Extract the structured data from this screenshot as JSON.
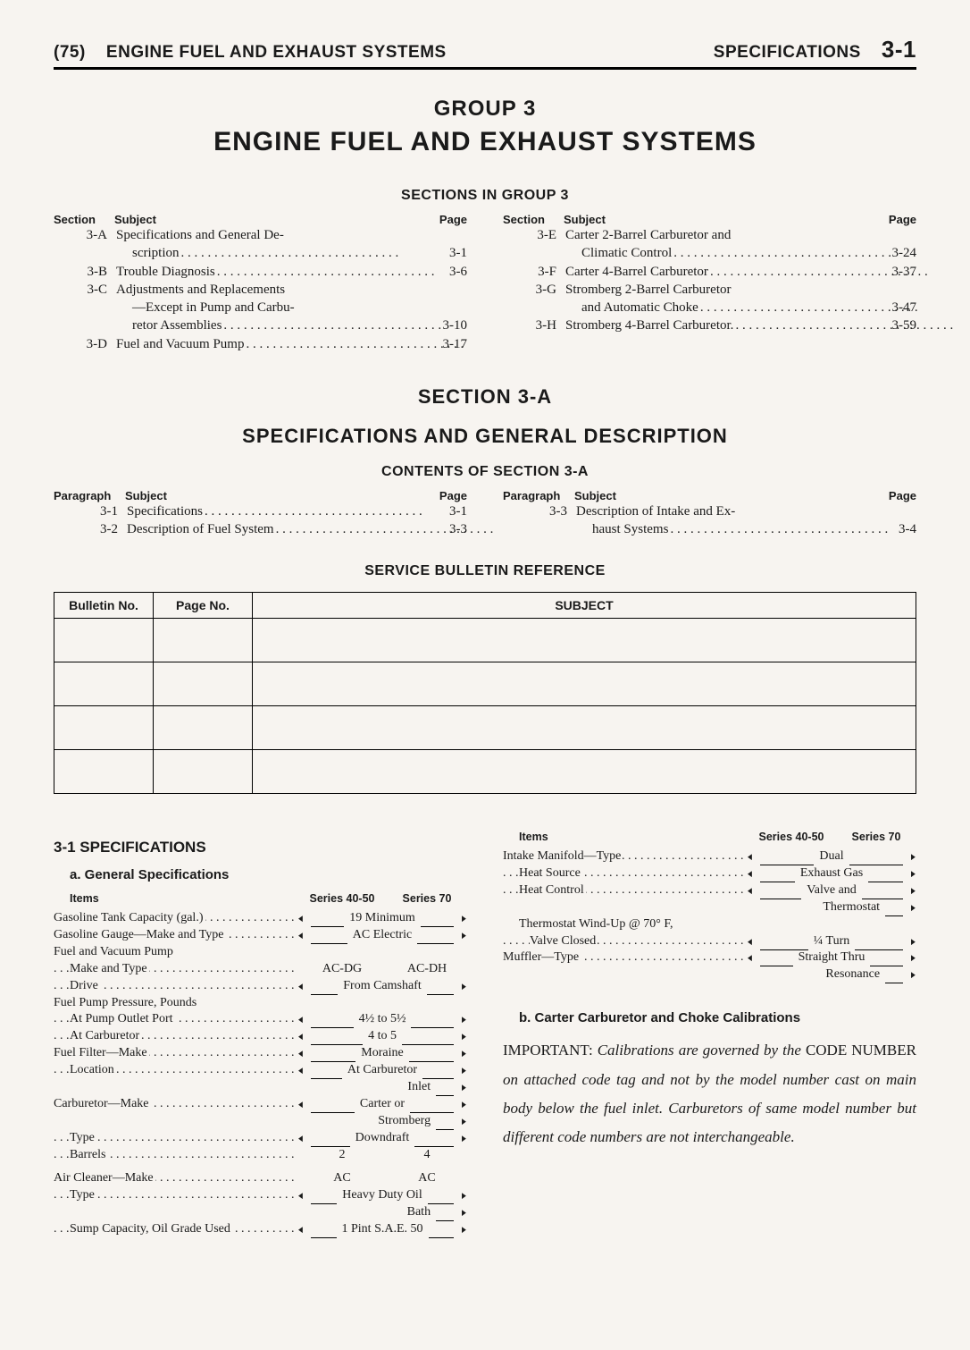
{
  "header": {
    "left_paren": "(75)",
    "left_title": "ENGINE FUEL AND EXHAUST SYSTEMS",
    "right_title": "SPECIFICATIONS",
    "page_num": "3-1"
  },
  "titles": {
    "group": "GROUP 3",
    "main": "ENGINE FUEL AND EXHAUST SYSTEMS",
    "sections_in": "SECTIONS IN GROUP 3",
    "section_a": "SECTION 3-A",
    "spec_desc": "SPECIFICATIONS AND GENERAL DESCRIPTION",
    "contents_a": "CONTENTS OF SECTION 3-A",
    "bulletin": "SERVICE BULLETIN REFERENCE"
  },
  "toc_headers": {
    "section": "Section",
    "subject": "Subject",
    "page": "Page",
    "paragraph": "Paragraph"
  },
  "sections_left": [
    {
      "id": "3-A",
      "subject": "Specifications and General Description",
      "page": "3-1",
      "multi": true,
      "line1": "Specifications and General De-",
      "line2": "scription"
    },
    {
      "id": "3-B",
      "subject": "Trouble Diagnosis",
      "page": "3-6"
    },
    {
      "id": "3-C",
      "subject": "Adjustments and Replacements —Except in Pump and Carburetor Assemblies",
      "page": "3-10",
      "multi": true,
      "line1": "Adjustments and Replacements",
      "line2": "—Except in Pump and Carbu-",
      "line3": "retor Assemblies"
    },
    {
      "id": "3-D",
      "subject": "Fuel and Vacuum Pump",
      "page": "3-17"
    }
  ],
  "sections_right": [
    {
      "id": "3-E",
      "subject": "Carter 2-Barrel Carburetor and Climatic Control",
      "page": "3-24",
      "multi": true,
      "line1": "Carter 2-Barrel Carburetor and",
      "line2": "Climatic Control"
    },
    {
      "id": "3-F",
      "subject": "Carter 4-Barrel Carburetor",
      "page": "3-37"
    },
    {
      "id": "3-G",
      "subject": "Stromberg 2-Barrel Carburetor and Automatic Choke",
      "page": "3-47",
      "multi": true,
      "line1": "Stromberg 2-Barrel Carburetor",
      "line2": "and Automatic Choke"
    },
    {
      "id": "3-H",
      "subject": "Stromberg 4-Barrel Carburetor.",
      "page": "3-59"
    }
  ],
  "contents_left": [
    {
      "id": "3-1",
      "subject": "Specifications",
      "page": "3-1"
    },
    {
      "id": "3-2",
      "subject": "Description of Fuel System",
      "page": "3-3"
    }
  ],
  "contents_right": [
    {
      "id": "3-3",
      "subject": "Description of Intake and Exhaust Systems",
      "page": "3-4",
      "multi": true,
      "line1": "Description of Intake and Ex-",
      "line2": "haust Systems"
    }
  ],
  "bulletin_headers": {
    "bn": "Bulletin No.",
    "pn": "Page No.",
    "subj": "SUBJECT"
  },
  "spec_heading": "3-1 SPECIFICATIONS",
  "sub_a": "a. General Specifications",
  "spec_col_headers": {
    "items": "Items",
    "s4050": "Series 40-50",
    "s70": "Series 70"
  },
  "specs_left": [
    {
      "label": "Gasoline Tank Capacity (gal.)",
      "both": "19 Minimum"
    },
    {
      "label": "Gasoline Gauge—Make and Type",
      "both": "AC Electric"
    },
    {
      "label": "Fuel and Vacuum Pump",
      "noDots": true
    },
    {
      "label": "Make and Type",
      "indent": 1,
      "v1": "AC-DG",
      "v2": "AC-DH"
    },
    {
      "label": "Drive",
      "indent": 1,
      "both": "From Camshaft"
    },
    {
      "label": "Fuel Pump Pressure, Pounds",
      "noDots": true
    },
    {
      "label": "At Pump Outlet Port",
      "indent": 1,
      "both": "4½ to 5½"
    },
    {
      "label": "At Carburetor",
      "indent": 1,
      "both": "4 to 5"
    },
    {
      "label": "Fuel Filter—Make",
      "both": "Moraine"
    },
    {
      "label": "Location",
      "indent": 1,
      "both": "At Carburetor"
    },
    {
      "label": "",
      "indent": 2,
      "both": "Inlet",
      "noDots": true,
      "rightOnly": true
    },
    {
      "label": "Carburetor—Make",
      "both": "Carter or"
    },
    {
      "label": "",
      "both": "Stromberg",
      "noDots": true,
      "rightOnly": true
    },
    {
      "label": "Type",
      "indent": 1,
      "both": "Downdraft"
    },
    {
      "label": "Barrels",
      "indent": 1,
      "v1": "2",
      "v2": "4"
    },
    {
      "label": "",
      "noDots": true,
      "spacer": true
    },
    {
      "label": "Air Cleaner—Make",
      "v1": "AC",
      "v2": "AC"
    },
    {
      "label": "Type",
      "indent": 1,
      "both": "Heavy Duty Oil"
    },
    {
      "label": "",
      "both": "Bath",
      "noDots": true,
      "rightOnly": true
    },
    {
      "label": "Sump Capacity, Oil Grade Used",
      "indent": 1,
      "both": "1 Pint S.A.E. 50"
    }
  ],
  "specs_right": [
    {
      "label": "Intake Manifold—Type",
      "both": "Dual"
    },
    {
      "label": "Heat Source",
      "indent": 1,
      "both": "Exhaust Gas"
    },
    {
      "label": "Heat Control",
      "indent": 1,
      "both": "Valve and"
    },
    {
      "label": "",
      "both": "Thermostat",
      "noDots": true,
      "rightOnly": true
    },
    {
      "label": "Thermostat Wind-Up @ 70° F,",
      "indent": 1,
      "noDots": true
    },
    {
      "label": "Valve Closed",
      "indent": 2,
      "both": "¼ Turn"
    },
    {
      "label": "Muffler—Type",
      "both": "Straight Thru"
    },
    {
      "label": "",
      "both": "Resonance",
      "noDots": true,
      "rightOnly": true
    }
  ],
  "sub_b": "b. Carter Carburetor and Choke Calibrations",
  "body": {
    "p1a": "IMPORTANT: ",
    "p1b": "Calibrations are governed by the",
    "p1c": " CODE NUMBER ",
    "p1d": "on attached code tag and not by the model number cast on main body below the fuel inlet. Carburetors of same model number but different code numbers are not interchangeable."
  }
}
